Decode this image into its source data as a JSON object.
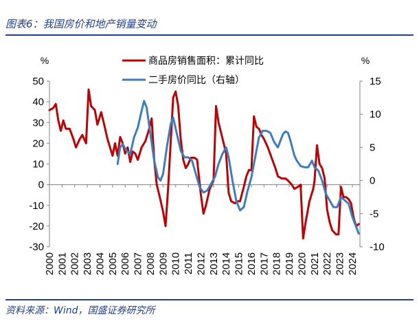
{
  "header": {
    "title": "图表6：我国房价和地产销量变动"
  },
  "footer": {
    "source": "资料来源：Wind，国盛证券研究所"
  },
  "colors": {
    "accent": "#1f3f8f",
    "sales": "#c00000",
    "price": "#3a7dc0"
  },
  "chart_data": {
    "type": "line",
    "left_unit": "%",
    "right_unit": "%",
    "ylim_left": [
      -30,
      50
    ],
    "ylim_right": [
      -10,
      15
    ],
    "yticks_left": [
      -30,
      -20,
      -10,
      0,
      10,
      20,
      30,
      40,
      50
    ],
    "yticks_right": [
      -10,
      -5,
      0,
      5,
      10,
      15
    ],
    "xlim": [
      2000,
      2024.6
    ],
    "xticks": [
      "2000",
      "2001",
      "2002",
      "2003",
      "2004",
      "2005",
      "2006",
      "2007",
      "2008",
      "2009",
      "2010",
      "2011",
      "2012",
      "2013",
      "2014",
      "2015",
      "2016",
      "2017",
      "2018",
      "2019",
      "2020",
      "2021",
      "2022",
      "2023",
      "2024"
    ],
    "legend_placement": "top",
    "series": [
      {
        "name": "商品房销售面积：累计同比",
        "axis": "left",
        "color": "#c00000",
        "points": [
          [
            2000.0,
            36
          ],
          [
            2000.3,
            37
          ],
          [
            2000.5,
            39
          ],
          [
            2000.7,
            31
          ],
          [
            2000.9,
            26
          ],
          [
            2001.1,
            31
          ],
          [
            2001.3,
            27
          ],
          [
            2001.6,
            27
          ],
          [
            2001.9,
            22
          ],
          [
            2002.1,
            18
          ],
          [
            2002.4,
            22
          ],
          [
            2002.6,
            24
          ],
          [
            2002.9,
            20
          ],
          [
            2003.1,
            46
          ],
          [
            2003.3,
            38
          ],
          [
            2003.6,
            36
          ],
          [
            2003.8,
            29
          ],
          [
            2004.1,
            35
          ],
          [
            2004.3,
            30
          ],
          [
            2004.6,
            22
          ],
          [
            2004.8,
            18
          ],
          [
            2005.0,
            14
          ],
          [
            2005.2,
            20
          ],
          [
            2005.4,
            14
          ],
          [
            2005.6,
            23
          ],
          [
            2005.8,
            20
          ],
          [
            2006.0,
            15
          ],
          [
            2006.2,
            18
          ],
          [
            2006.4,
            11
          ],
          [
            2006.6,
            16
          ],
          [
            2006.8,
            15
          ],
          [
            2007.0,
            12
          ],
          [
            2007.3,
            18
          ],
          [
            2007.6,
            21
          ],
          [
            2007.9,
            27
          ],
          [
            2008.1,
            32
          ],
          [
            2008.3,
            12
          ],
          [
            2008.5,
            0
          ],
          [
            2008.7,
            -5
          ],
          [
            2009.0,
            -13
          ],
          [
            2009.2,
            -20
          ],
          [
            2009.4,
            -2
          ],
          [
            2009.6,
            20
          ],
          [
            2009.8,
            42
          ],
          [
            2010.0,
            45
          ],
          [
            2010.2,
            38
          ],
          [
            2010.4,
            22
          ],
          [
            2010.6,
            12
          ],
          [
            2010.8,
            8
          ],
          [
            2011.0,
            10
          ],
          [
            2011.2,
            13
          ],
          [
            2011.5,
            13
          ],
          [
            2011.7,
            12
          ],
          [
            2012.0,
            -5
          ],
          [
            2012.2,
            -14
          ],
          [
            2012.4,
            -10
          ],
          [
            2012.7,
            -2
          ],
          [
            2013.0,
            2
          ],
          [
            2013.2,
            38
          ],
          [
            2013.4,
            30
          ],
          [
            2013.6,
            25
          ],
          [
            2013.8,
            20
          ],
          [
            2014.0,
            15
          ],
          [
            2014.2,
            -4
          ],
          [
            2014.4,
            -8
          ],
          [
            2014.7,
            -9
          ],
          [
            2014.9,
            -8
          ],
          [
            2015.1,
            -8
          ],
          [
            2015.4,
            -1
          ],
          [
            2015.6,
            4
          ],
          [
            2015.8,
            7
          ],
          [
            2016.0,
            7
          ],
          [
            2016.2,
            33
          ],
          [
            2016.4,
            28
          ],
          [
            2016.6,
            27
          ],
          [
            2016.8,
            24
          ],
          [
            2017.0,
            22
          ],
          [
            2017.3,
            18
          ],
          [
            2017.6,
            13
          ],
          [
            2017.9,
            8
          ],
          [
            2018.1,
            4
          ],
          [
            2018.4,
            3
          ],
          [
            2018.7,
            3
          ],
          [
            2018.9,
            2
          ],
          [
            2019.2,
            0
          ],
          [
            2019.4,
            -2
          ],
          [
            2019.7,
            -1
          ],
          [
            2019.9,
            0
          ],
          [
            2020.1,
            -26
          ],
          [
            2020.3,
            -18
          ],
          [
            2020.6,
            -8
          ],
          [
            2020.9,
            -2
          ],
          [
            2021.0,
            2
          ],
          [
            2021.2,
            19
          ],
          [
            2021.4,
            10
          ],
          [
            2021.6,
            8
          ],
          [
            2021.8,
            3
          ],
          [
            2022.0,
            -12
          ],
          [
            2022.2,
            -18
          ],
          [
            2022.4,
            -22
          ],
          [
            2022.7,
            -24
          ],
          [
            2022.9,
            -24
          ],
          [
            2023.1,
            -1
          ],
          [
            2023.3,
            -6
          ],
          [
            2023.5,
            -6
          ],
          [
            2023.7,
            -7
          ],
          [
            2023.9,
            -9
          ],
          [
            2024.1,
            -16
          ],
          [
            2024.3,
            -20
          ],
          [
            2024.5,
            -19
          ]
        ]
      },
      {
        "name": "二手房价同比（右轴）",
        "axis": "right",
        "color": "#3a7dc0",
        "points": [
          [
            2005.4,
            2.5
          ],
          [
            2005.6,
            5.0
          ],
          [
            2005.8,
            5.5
          ],
          [
            2006.1,
            4.5
          ],
          [
            2006.4,
            4.0
          ],
          [
            2006.7,
            6.5
          ],
          [
            2007.0,
            8.0
          ],
          [
            2007.3,
            10.5
          ],
          [
            2007.5,
            12.0
          ],
          [
            2007.7,
            11.0
          ],
          [
            2008.0,
            7.0
          ],
          [
            2008.3,
            3.0
          ],
          [
            2008.6,
            0.5
          ],
          [
            2008.8,
            0.0
          ],
          [
            2009.0,
            1.0
          ],
          [
            2009.3,
            5.0
          ],
          [
            2009.6,
            8.5
          ],
          [
            2009.8,
            9.5
          ],
          [
            2010.1,
            7.0
          ],
          [
            2010.4,
            4.5
          ],
          [
            2010.7,
            3.5
          ],
          [
            2011.0,
            3.5
          ],
          [
            2011.3,
            3.0
          ],
          [
            2011.6,
            1.0
          ],
          [
            2011.9,
            -1.0
          ],
          [
            2012.2,
            -1.8
          ],
          [
            2012.5,
            -1.5
          ],
          [
            2012.8,
            -0.5
          ],
          [
            2013.1,
            0.5
          ],
          [
            2013.4,
            2.5
          ],
          [
            2013.7,
            4.0
          ],
          [
            2014.0,
            5.0
          ],
          [
            2014.2,
            3.5
          ],
          [
            2014.5,
            0.0
          ],
          [
            2014.8,
            -3.0
          ],
          [
            2015.1,
            -4.5
          ],
          [
            2015.4,
            -4.0
          ],
          [
            2015.7,
            -1.5
          ],
          [
            2016.0,
            0.5
          ],
          [
            2016.3,
            3.5
          ],
          [
            2016.6,
            6.5
          ],
          [
            2016.9,
            7.5
          ],
          [
            2017.2,
            7.5
          ],
          [
            2017.5,
            7.2
          ],
          [
            2017.8,
            5.8
          ],
          [
            2018.1,
            5.0
          ],
          [
            2018.3,
            6.0
          ],
          [
            2018.5,
            7.0
          ],
          [
            2018.7,
            7.4
          ],
          [
            2018.9,
            7.2
          ],
          [
            2019.1,
            6.0
          ],
          [
            2019.4,
            3.8
          ],
          [
            2019.6,
            3.0
          ],
          [
            2019.9,
            2.2
          ],
          [
            2020.2,
            2.0
          ],
          [
            2020.5,
            2.0
          ],
          [
            2020.8,
            3.0
          ],
          [
            2021.0,
            2.0
          ],
          [
            2021.3,
            1.5
          ],
          [
            2021.6,
            0.0
          ],
          [
            2021.9,
            -2.0
          ],
          [
            2022.2,
            -3.0
          ],
          [
            2022.5,
            -4.0
          ],
          [
            2022.8,
            -4.0
          ],
          [
            2023.1,
            -2.5
          ],
          [
            2023.4,
            -3.0
          ],
          [
            2023.7,
            -3.5
          ],
          [
            2024.0,
            -5.5
          ],
          [
            2024.2,
            -6.5
          ],
          [
            2024.5,
            -8.0
          ]
        ]
      }
    ]
  }
}
